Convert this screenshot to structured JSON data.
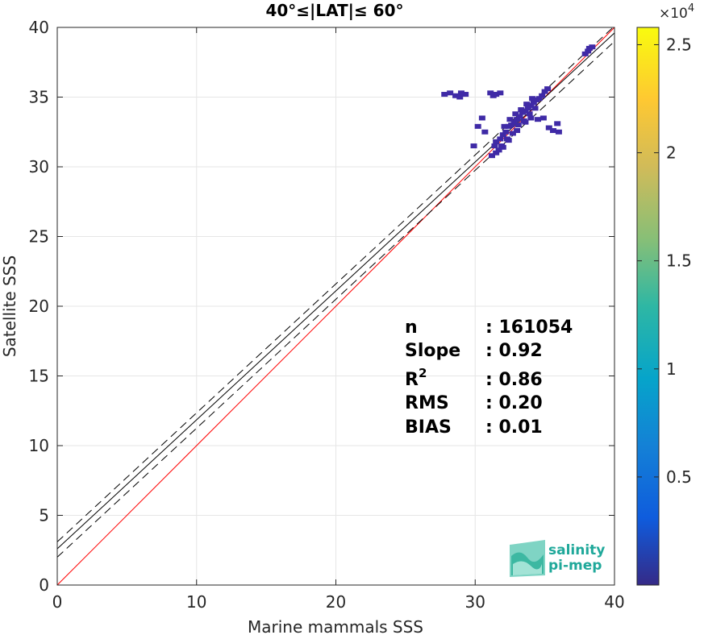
{
  "chart_data": {
    "type": "scatter",
    "title": "40°≤|LAT|≤ 60°",
    "xlabel": "Marine mammals SSS",
    "ylabel": "Satellite SSS",
    "xlim": [
      0,
      40
    ],
    "ylim": [
      0,
      40
    ],
    "xticks": [
      0,
      10,
      20,
      30,
      40
    ],
    "yticks": [
      0,
      5,
      10,
      15,
      20,
      25,
      30,
      35,
      40
    ],
    "grid": true,
    "reference_lines": [
      {
        "kind": "one-to-one",
        "color": "#ff0000",
        "points": [
          [
            0,
            0
          ],
          [
            40,
            40
          ]
        ]
      },
      {
        "kind": "fit",
        "color": "#000000",
        "style": "solid",
        "points": [
          [
            0,
            2.6
          ],
          [
            40,
            39.6
          ]
        ]
      },
      {
        "kind": "fit-upper",
        "color": "#000000",
        "style": "dashed",
        "points": [
          [
            0,
            3.1
          ],
          [
            40,
            40.1
          ]
        ]
      },
      {
        "kind": "fit-lower",
        "color": "#000000",
        "style": "dashed",
        "points": [
          [
            0,
            2.0
          ],
          [
            40,
            39.0
          ]
        ]
      }
    ],
    "density_points": [
      [
        38.1,
        38.3
      ],
      [
        38.4,
        38.6
      ],
      [
        38.2,
        38.5
      ],
      [
        37.9,
        38.1
      ],
      [
        27.8,
        35.2
      ],
      [
        28.2,
        35.3
      ],
      [
        28.6,
        35.1
      ],
      [
        29.0,
        35.3
      ],
      [
        29.3,
        35.2
      ],
      [
        28.9,
        35.0
      ],
      [
        31.1,
        35.3
      ],
      [
        31.5,
        35.2
      ],
      [
        31.8,
        35.3
      ],
      [
        31.3,
        35.1
      ],
      [
        30.5,
        33.5
      ],
      [
        30.7,
        32.5
      ],
      [
        29.9,
        31.5
      ],
      [
        30.2,
        32.9
      ],
      [
        31.5,
        31.8
      ],
      [
        31.8,
        32.0
      ],
      [
        32.0,
        32.3
      ],
      [
        32.2,
        32.5
      ],
      [
        32.4,
        32.9
      ],
      [
        32.6,
        33.0
      ],
      [
        32.8,
        33.2
      ],
      [
        33.0,
        33.4
      ],
      [
        33.2,
        33.6
      ],
      [
        33.4,
        33.9
      ],
      [
        33.6,
        34.0
      ],
      [
        33.8,
        34.2
      ],
      [
        34.0,
        34.4
      ],
      [
        34.2,
        34.6
      ],
      [
        34.4,
        34.8
      ],
      [
        34.6,
        34.9
      ],
      [
        34.8,
        35.1
      ],
      [
        35.0,
        35.4
      ],
      [
        35.2,
        35.6
      ],
      [
        31.9,
        31.5
      ],
      [
        32.3,
        32.0
      ],
      [
        32.7,
        32.4
      ],
      [
        33.1,
        33.0
      ],
      [
        33.5,
        33.3
      ],
      [
        33.9,
        33.8
      ],
      [
        34.3,
        34.2
      ],
      [
        32.1,
        32.9
      ],
      [
        32.5,
        33.4
      ],
      [
        32.9,
        33.8
      ],
      [
        33.3,
        34.1
      ],
      [
        33.7,
        34.5
      ],
      [
        34.1,
        34.9
      ],
      [
        31.7,
        31.2
      ],
      [
        32.0,
        31.4
      ],
      [
        31.4,
        31.5
      ],
      [
        34.5,
        33.4
      ],
      [
        34.9,
        33.5
      ],
      [
        35.3,
        32.8
      ],
      [
        35.6,
        32.6
      ],
      [
        36.0,
        32.5
      ],
      [
        35.9,
        33.1
      ],
      [
        33.0,
        32.6
      ],
      [
        32.4,
        31.9
      ],
      [
        33.6,
        33.2
      ],
      [
        34.0,
        33.5
      ],
      [
        31.2,
        30.8
      ],
      [
        31.5,
        31.0
      ]
    ],
    "colorbar": {
      "min": 0,
      "max": 25800,
      "ticks": [
        0.5,
        1,
        1.5,
        2,
        2.5
      ],
      "tick_labels": [
        "0.5",
        "1",
        "1.5",
        "2",
        "2.5"
      ],
      "exponent_label": "×10",
      "exponent": "4",
      "colormap": "parula"
    },
    "stats": [
      {
        "label": "n",
        "value": ": 161054",
        "sup": ""
      },
      {
        "label": "Slope",
        "value": ": 0.92",
        "sup": ""
      },
      {
        "label": "R",
        "value": ": 0.86",
        "sup": "2"
      },
      {
        "label": "RMS",
        "value": ": 0.20",
        "sup": ""
      },
      {
        "label": "BIAS",
        "value": ": 0.01",
        "sup": ""
      }
    ]
  },
  "logo": {
    "line1": "salinity",
    "line2": "pi-mep",
    "color": "#1fa89a"
  }
}
